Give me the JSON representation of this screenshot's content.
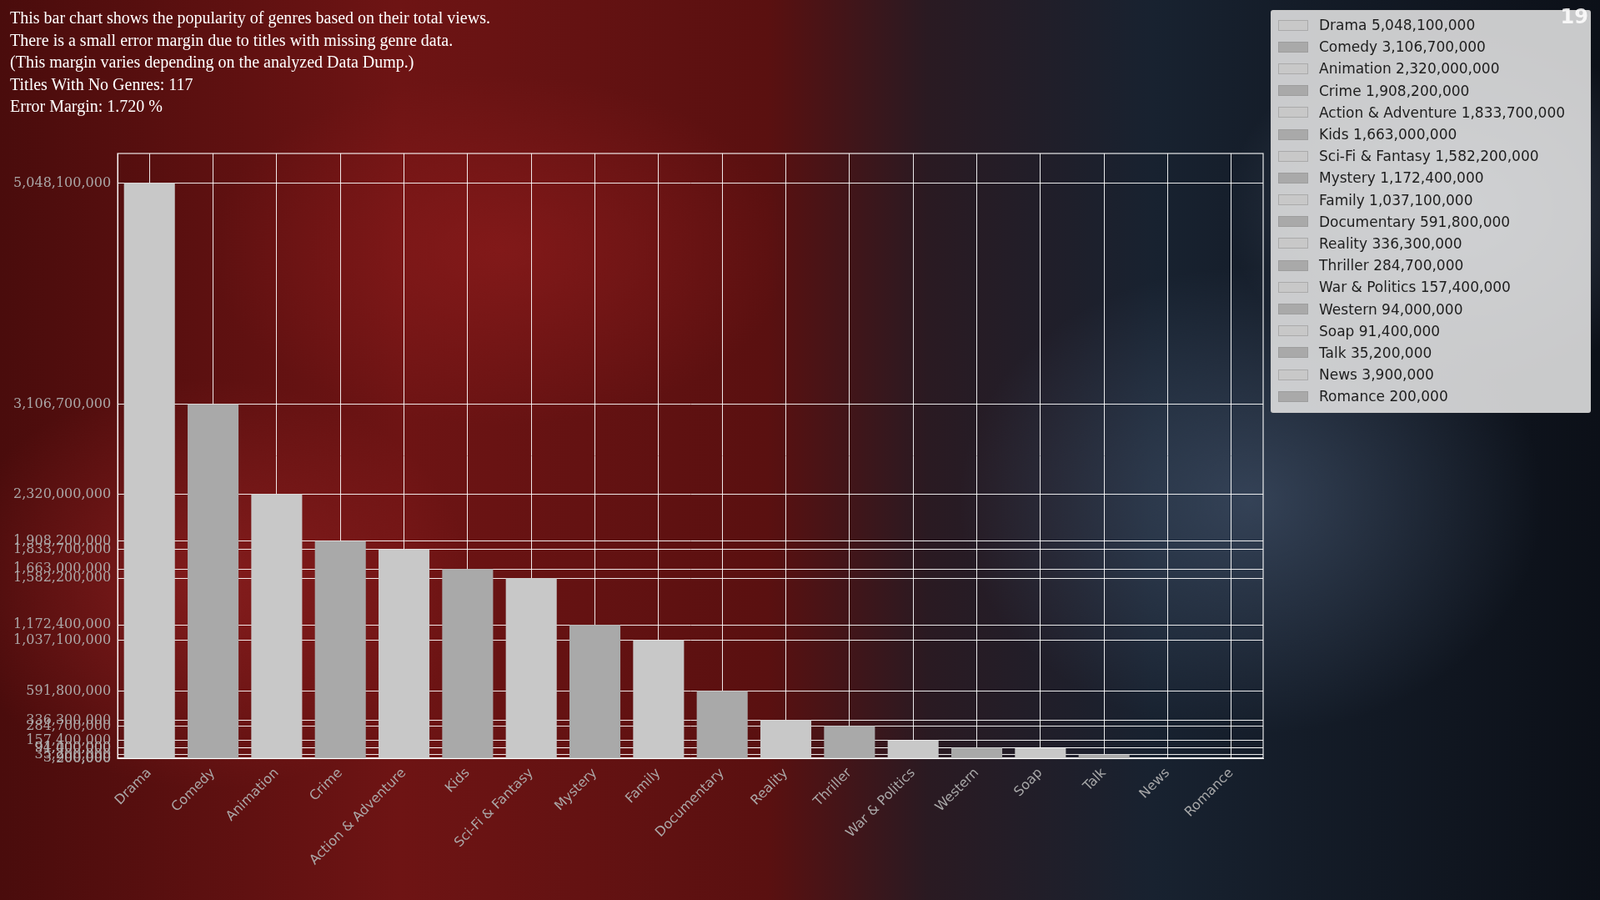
{
  "chart_data": {
    "type": "bar",
    "annotations": [
      "This bar chart shows the popularity of genres based on their total views.",
      "There is a small error margin due to titles with missing genre data.",
      "(This margin varies depending on the analyzed Data Dump.)",
      "Titles With No Genres: 117",
      "Error Margin: 1.720 %"
    ],
    "corner_text": "19",
    "categories": [
      "Drama",
      "Comedy",
      "Animation",
      "Crime",
      "Action & Adventure",
      "Kids",
      "Sci-Fi & Fantasy",
      "Mystery",
      "Family",
      "Documentary",
      "Reality",
      "Thriller",
      "War & Politics",
      "Western",
      "Soap",
      "Talk",
      "News",
      "Romance"
    ],
    "values": [
      5048100000,
      3106700000,
      2320000000,
      1908200000,
      1833700000,
      1663000000,
      1582200000,
      1172400000,
      1037100000,
      591800000,
      336300000,
      284700000,
      157400000,
      94000000,
      91400000,
      35200000,
      3900000,
      200000
    ],
    "legend_entries": [
      "Drama 5,048,100,000",
      "Comedy 3,106,700,000",
      "Animation 2,320,000,000",
      "Crime 1,908,200,000",
      "Action & Adventure 1,833,700,000",
      "Kids 1,663,000,000",
      "Sci-Fi & Fantasy 1,582,200,000",
      "Mystery 1,172,400,000",
      "Family 1,037,100,000",
      "Documentary 591,800,000",
      "Reality 336,300,000",
      "Thriller 284,700,000",
      "War & Politics 157,400,000",
      "Western 94,000,000",
      "Soap 91,400,000",
      "Talk 35,200,000",
      "News 3,900,000",
      "Romance 200,000"
    ],
    "colors": [
      "#c8c8c8",
      "#a9a9a9",
      "#c8c8c8",
      "#a9a9a9",
      "#c8c8c8",
      "#a9a9a9",
      "#c8c8c8",
      "#a9a9a9",
      "#c8c8c8",
      "#a9a9a9",
      "#c8c8c8",
      "#a9a9a9",
      "#c8c8c8",
      "#a9a9a9",
      "#c8c8c8",
      "#a9a9a9",
      "#c8c8c8",
      "#a9a9a9"
    ],
    "ylim": [
      0,
      5308000000
    ],
    "yticks": [
      {
        "value": 5048100000,
        "label": "5,048,100,000"
      },
      {
        "value": 3106700000,
        "label": "3,106,700,000"
      },
      {
        "value": 2320000000,
        "label": "2,320,000,000"
      },
      {
        "value": 1908200000,
        "label": "1,908,200,000"
      },
      {
        "value": 1833700000,
        "label": "1,833,700,000"
      },
      {
        "value": 1663000000,
        "label": "1,663,000,000"
      },
      {
        "value": 1582200000,
        "label": "1,582,200,000"
      },
      {
        "value": 1172400000,
        "label": "1,172,400,000"
      },
      {
        "value": 1037100000,
        "label": "1,037,100,000"
      },
      {
        "value": 591800000,
        "label": "591,800,000"
      },
      {
        "value": 336300000,
        "label": "336,300,000"
      },
      {
        "value": 284700000,
        "label": "284,700,000"
      },
      {
        "value": 157400000,
        "label": "157,400,000"
      },
      {
        "value": 94000000,
        "label": "94,000,000"
      },
      {
        "value": 91400000,
        "label": "91,400,000"
      },
      {
        "value": 35200000,
        "label": "35,200,000"
      },
      {
        "value": 3900000,
        "label": "3,900,000"
      },
      {
        "value": 200000,
        "label": "200,000"
      }
    ],
    "grid": true,
    "legend": "top right"
  }
}
